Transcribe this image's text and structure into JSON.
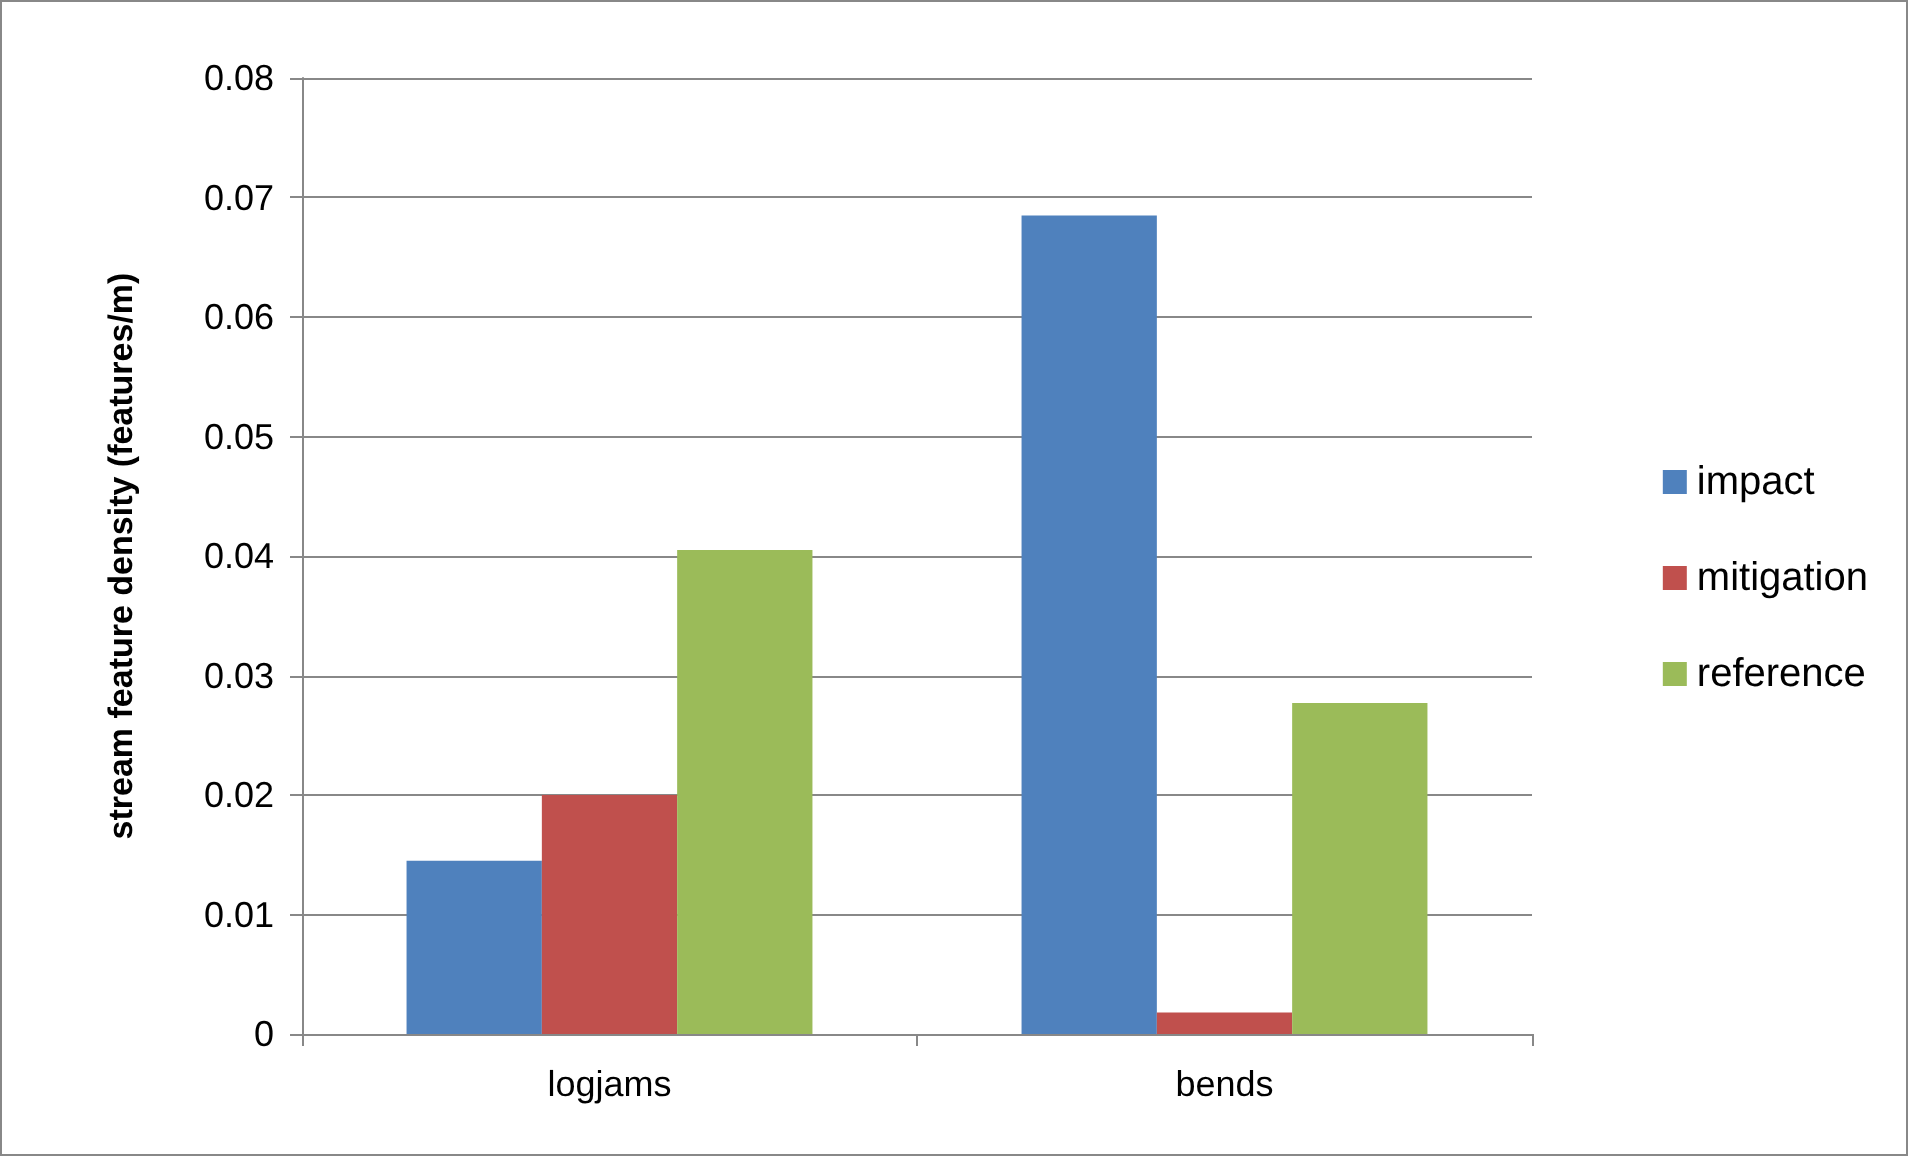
{
  "chart_data": {
    "type": "bar",
    "ylabel": "stream feature density (features/m)",
    "categories": [
      "logjams",
      "bends"
    ],
    "series": [
      {
        "name": "impact",
        "color": "#4f81bd",
        "values": [
          0.0145,
          0.0685
        ]
      },
      {
        "name": "mitigation",
        "color": "#c0504d",
        "values": [
          0.02,
          0.0018
        ]
      },
      {
        "name": "reference",
        "color": "#9bbb59",
        "values": [
          0.0405,
          0.0277
        ]
      }
    ],
    "ylim": [
      0,
      0.08
    ],
    "yticks": [
      0,
      0.01,
      0.02,
      0.03,
      0.04,
      0.05,
      0.06,
      0.07,
      0.08
    ],
    "grid": "y",
    "legend": "right"
  }
}
